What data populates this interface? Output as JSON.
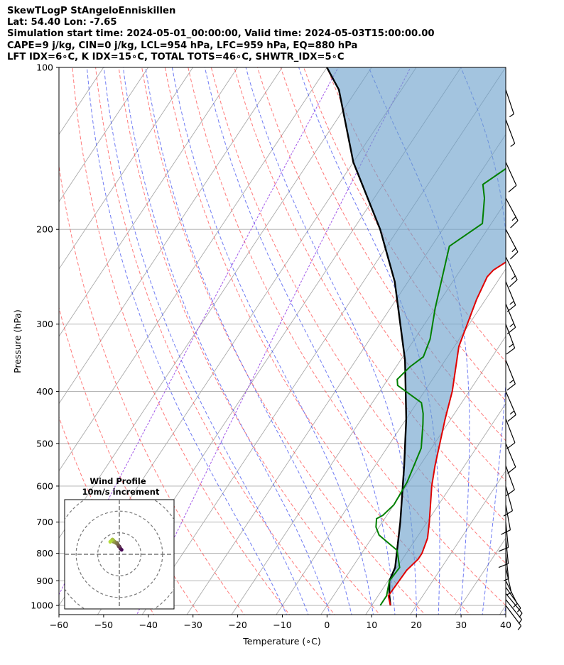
{
  "header": {
    "lines": [
      "SkewTLogP StAngeloEnniskillen",
      "Lat: 54.40   Lon: -7.65",
      "Simulation start time: 2024-05-01_00:00:00, Valid time: 2024-05-03T15:00:00.00",
      "CAPE=9 j/kg, CIN=0 j/kg, LCL=954 hPa, LFC=959 hPa, EQ=880 hPa",
      "LFT IDX=6∘C, K IDX=15∘C, TOTAL TOTS=46∘C, SHWTR_IDX=5∘C"
    ]
  },
  "chart_data": {
    "type": "line",
    "subtype": "skew-t log-p",
    "xlabel": "Temperature (∘C)",
    "ylabel": "Pressure (hPa)",
    "xlim": [
      -60,
      40
    ],
    "ylim": [
      1040,
      100
    ],
    "x_ticks": [
      -60,
      -50,
      -40,
      -30,
      -20,
      -10,
      0,
      10,
      20,
      30,
      40
    ],
    "x_tick_labels": [
      "−60",
      "−50",
      "−40",
      "−30",
      "−20",
      "−10",
      "0",
      "10",
      "20",
      "30",
      "40"
    ],
    "y_ticks": [
      1000,
      900,
      800,
      700,
      600,
      500,
      400,
      300,
      200,
      100
    ],
    "y_tick_labels": [
      "1000",
      "900",
      "800",
      "700",
      "600",
      "500",
      "400",
      "300",
      "200",
      "100"
    ],
    "grid": true,
    "scale": "log-pressure",
    "colors": {
      "temperature": "#e00000",
      "dewpoint": "#008000",
      "parcel": "#000000",
      "cape_fill": "#6a9fcb",
      "dry_adiabat": "#ff4d4d",
      "moist_adiabat": "#3344ee",
      "mixing_ratio": "#8a2be2",
      "isotherm": "#aaaaaa",
      "isobar": "#aaaaaa"
    },
    "series": [
      {
        "key": "temperature",
        "points": [
          [
            14.2,
            1000
          ],
          [
            12.3,
            960
          ],
          [
            12.6,
            860
          ],
          [
            13.5,
            820
          ],
          [
            13.5,
            800
          ],
          [
            12.5,
            750
          ],
          [
            10.5,
            700
          ],
          [
            5.7,
            600
          ],
          [
            3.4,
            550
          ],
          [
            -1.3,
            450
          ],
          [
            -3.8,
            400
          ],
          [
            -9,
            330
          ],
          [
            -12,
            270
          ],
          [
            -13,
            245
          ],
          [
            -12.6,
            238
          ],
          [
            -8.9,
            220
          ],
          [
            -4.6,
            195
          ],
          [
            3.5,
            160
          ],
          [
            9,
            130
          ],
          [
            14.5,
            110
          ],
          [
            17.2,
            100
          ]
        ]
      },
      {
        "key": "dewpoint",
        "points": [
          [
            11.9,
            1000
          ],
          [
            11.9,
            960
          ],
          [
            10.3,
            900
          ],
          [
            10.6,
            850
          ],
          [
            7.5,
            790
          ],
          [
            1.2,
            740
          ],
          [
            -0.7,
            715
          ],
          [
            -1.8,
            690
          ],
          [
            -0.9,
            680
          ],
          [
            0,
            650
          ],
          [
            -0.4,
            590
          ],
          [
            -2.3,
            510
          ],
          [
            -5.5,
            460
          ],
          [
            -7,
            440
          ],
          [
            -9,
            420
          ],
          [
            -16.9,
            390
          ],
          [
            -17.9,
            380
          ],
          [
            -16.9,
            360
          ],
          [
            -15.4,
            345
          ],
          [
            -16.5,
            320
          ],
          [
            -20,
            280
          ],
          [
            -26,
            215
          ],
          [
            -22,
            195
          ],
          [
            -25.3,
            175
          ],
          [
            -27.7,
            165
          ],
          [
            -7,
            100
          ]
        ]
      },
      {
        "key": "parcel",
        "points": [
          [
            14.2,
            1000
          ],
          [
            12.3,
            954
          ],
          [
            10.3,
            900
          ],
          [
            9.6,
            850
          ],
          [
            4,
            700
          ],
          [
            -3.5,
            550
          ],
          [
            -10,
            450
          ],
          [
            -19,
            350
          ],
          [
            -33,
            250
          ],
          [
            -44,
            200
          ],
          [
            -60,
            150
          ],
          [
            -74,
            110
          ],
          [
            -80,
            100
          ]
        ]
      }
    ],
    "isotherms": [
      -130,
      -120,
      -110,
      -100,
      -90,
      -80,
      -70,
      -60,
      -50,
      -40,
      -30,
      -20,
      -10,
      0,
      10,
      20,
      30,
      40
    ],
    "dry_adiabats": [
      -40,
      -30,
      -20,
      -10,
      0,
      10,
      20,
      30,
      40,
      50,
      60,
      70,
      80,
      90,
      100
    ],
    "moist_adiabats": [
      -10,
      -5,
      0,
      5,
      10,
      15,
      20,
      25,
      30,
      35,
      40
    ],
    "mixing_ratios": [
      0.01,
      0.1
    ],
    "wind_barbs": [
      {
        "p": 1000,
        "u": -3,
        "v": 4
      },
      {
        "p": 975,
        "u": -4,
        "v": 5
      },
      {
        "p": 950,
        "u": -5,
        "v": 6
      },
      {
        "p": 925,
        "u": -5,
        "v": 7
      },
      {
        "p": 900,
        "u": -4,
        "v": 8
      },
      {
        "p": 850,
        "u": -2,
        "v": 9
      },
      {
        "p": 800,
        "u": -1,
        "v": 9
      },
      {
        "p": 750,
        "u": -1,
        "v": 10
      },
      {
        "p": 700,
        "u": -1,
        "v": 10
      },
      {
        "p": 650,
        "u": -2,
        "v": 11
      },
      {
        "p": 600,
        "u": -3,
        "v": 11
      },
      {
        "p": 550,
        "u": -4,
        "v": 11
      },
      {
        "p": 500,
        "u": -5,
        "v": 12
      },
      {
        "p": 450,
        "u": -5,
        "v": 13
      },
      {
        "p": 400,
        "u": -6,
        "v": 14
      },
      {
        "p": 350,
        "u": -6,
        "v": 15
      },
      {
        "p": 300,
        "u": -6,
        "v": 16
      },
      {
        "p": 275,
        "u": -7,
        "v": 17
      },
      {
        "p": 250,
        "u": -7,
        "v": 17
      },
      {
        "p": 225,
        "u": -8,
        "v": 16
      },
      {
        "p": 200,
        "u": -8,
        "v": 15
      },
      {
        "p": 175,
        "u": -7,
        "v": 13
      },
      {
        "p": 150,
        "u": -5,
        "v": 11
      },
      {
        "p": 125,
        "u": -3,
        "v": 8
      },
      {
        "p": 110,
        "u": -2,
        "v": 6
      }
    ],
    "hodograph": {
      "title_lines": [
        "Wind Profile",
        "10m/s increment"
      ],
      "rings_ms": [
        10,
        20,
        30,
        40
      ],
      "u": [
        2,
        1,
        0.5,
        0,
        -0.5,
        -1,
        -1.5,
        -2,
        -3,
        -4,
        -5,
        -5,
        -6,
        -6,
        -7,
        -8
      ],
      "v": [
        4,
        5,
        6,
        7,
        7,
        8,
        9,
        10,
        10,
        11,
        11,
        12,
        13,
        13,
        12,
        11
      ]
    }
  }
}
